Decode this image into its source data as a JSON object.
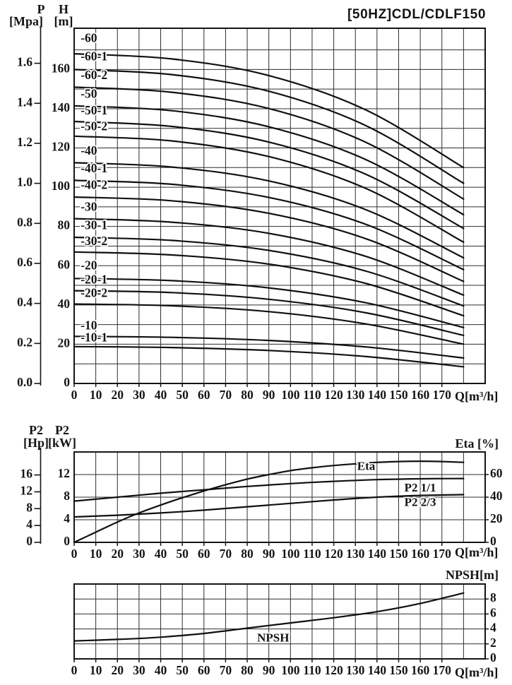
{
  "title": "[50HZ]CDL/CDLF150",
  "colors": {
    "background": "#ffffff",
    "ink": "#151515",
    "grid": "#2e2e2e",
    "curve": "#101010"
  },
  "labels": {
    "p_line1": "P",
    "p_line2": "[Mpa]",
    "h_line1": "H",
    "h_line2": "[m]",
    "p2hp_line1": "P2",
    "p2hp_line2": "[Hp]",
    "p2kw_line1": "P2",
    "p2kw_line2": "[kW]",
    "eta_axis": "Eta [%]",
    "npsh_axis": "NPSH[m]",
    "q_axis": "Q[m³/h]"
  },
  "chart_data": [
    {
      "id": "head",
      "type": "line",
      "title": "[50HZ]CDL/CDLF150",
      "xlabel": "Q[m³/h]",
      "ylabel": "H[m]",
      "y2label": "P[Mpa]",
      "xlim": [
        0,
        190
      ],
      "ylim": [
        0,
        181
      ],
      "grid": true,
      "x_ticks": [
        0,
        10,
        20,
        30,
        40,
        50,
        60,
        70,
        80,
        90,
        100,
        110,
        120,
        130,
        140,
        150,
        160,
        170
      ],
      "h_ticks": [
        0,
        20,
        40,
        60,
        80,
        100,
        120,
        140,
        160
      ],
      "p_ticks": [
        "0.0",
        "0.2",
        "0.4",
        "0.6",
        "0.8",
        "1.0",
        "1.2",
        "1.4",
        "1.6"
      ],
      "series": [
        {
          "name": "-60",
          "label_pos": [
            3,
            175.5
          ],
          "points": [
            [
              0,
              168
            ],
            [
              45,
              165.4
            ],
            [
              90,
              156.9
            ],
            [
              135,
              139.3
            ],
            [
              180,
              110
            ]
          ]
        },
        {
          "name": "-60-1",
          "label_pos": [
            3,
            166
          ],
          "points": [
            [
              0,
              160
            ],
            [
              45,
              157.4
            ],
            [
              90,
              148.9
            ],
            [
              135,
              131.3
            ],
            [
              180,
              102
            ]
          ]
        },
        {
          "name": "-60-2",
          "label_pos": [
            3,
            156.5
          ],
          "points": [
            [
              0,
              151
            ],
            [
              45,
              148.4
            ],
            [
              90,
              140.1
            ],
            [
              135,
              122.8
            ],
            [
              180,
              94
            ]
          ]
        },
        {
          "name": "-50",
          "label_pos": [
            3,
            147
          ],
          "points": [
            [
              0,
              141.5
            ],
            [
              45,
              139
            ],
            [
              90,
              130.8
            ],
            [
              135,
              114
            ],
            [
              180,
              86
            ]
          ]
        },
        {
          "name": "-50-1",
          "label_pos": [
            3,
            138.5
          ],
          "points": [
            [
              0,
              133.5
            ],
            [
              45,
              131
            ],
            [
              90,
              123
            ],
            [
              135,
              106.5
            ],
            [
              180,
              79
            ]
          ]
        },
        {
          "name": "-50-2",
          "label_pos": [
            3,
            130.5
          ],
          "points": [
            [
              0,
              126
            ],
            [
              45,
              123.6
            ],
            [
              90,
              115.6
            ],
            [
              135,
              99.3
            ],
            [
              180,
              72
            ]
          ]
        },
        {
          "name": "-40",
          "label_pos": [
            3,
            118
          ],
          "points": [
            [
              0,
              112.5
            ],
            [
              45,
              110.3
            ],
            [
              90,
              103.2
            ],
            [
              135,
              88.5
            ],
            [
              180,
              64
            ]
          ]
        },
        {
          "name": "-40-1",
          "label_pos": [
            3,
            109
          ],
          "points": [
            [
              0,
              103.5
            ],
            [
              45,
              101.5
            ],
            [
              90,
              94.8
            ],
            [
              135,
              81
            ],
            [
              180,
              58
            ]
          ]
        },
        {
          "name": "-40-2",
          "label_pos": [
            3,
            100.5
          ],
          "points": [
            [
              0,
              95
            ],
            [
              45,
              93.1
            ],
            [
              90,
              86.7
            ],
            [
              135,
              73.7
            ],
            [
              180,
              52
            ]
          ]
        },
        {
          "name": "-30",
          "label_pos": [
            3,
            89.5
          ],
          "points": [
            [
              0,
              84
            ],
            [
              45,
              82.2
            ],
            [
              90,
              76.5
            ],
            [
              135,
              64.7
            ],
            [
              180,
              45
            ]
          ]
        },
        {
          "name": "-30-1",
          "label_pos": [
            3,
            80
          ],
          "points": [
            [
              0,
              74.5
            ],
            [
              45,
              72.9
            ],
            [
              90,
              67.8
            ],
            [
              135,
              57.2
            ],
            [
              180,
              39.5
            ]
          ]
        },
        {
          "name": "-30-2",
          "label_pos": [
            3,
            72
          ],
          "points": [
            [
              0,
              67
            ],
            [
              45,
              65.5
            ],
            [
              90,
              60.8
            ],
            [
              135,
              50.9
            ],
            [
              180,
              34.5
            ]
          ]
        },
        {
          "name": "-20",
          "label_pos": [
            3,
            59.5
          ],
          "points": [
            [
              0,
              53.5
            ],
            [
              45,
              52.4
            ],
            [
              90,
              48.7
            ],
            [
              135,
              41.1
            ],
            [
              180,
              28.5
            ]
          ]
        },
        {
          "name": "-20-1",
          "label_pos": [
            3,
            52.3
          ],
          "points": [
            [
              0,
              47.3
            ],
            [
              45,
              46.3
            ],
            [
              90,
              42.9
            ],
            [
              135,
              36
            ],
            [
              180,
              24.5
            ]
          ]
        },
        {
          "name": "-20-2",
          "label_pos": [
            3,
            45.5
          ],
          "points": [
            [
              0,
              40.5
            ],
            [
              45,
              39.6
            ],
            [
              90,
              36.6
            ],
            [
              135,
              30.3
            ],
            [
              180,
              20
            ]
          ]
        },
        {
          "name": "-10",
          "label_pos": [
            3,
            29
          ],
          "points": [
            [
              0,
              24
            ],
            [
              45,
              23.5
            ],
            [
              90,
              21.9
            ],
            [
              135,
              18.6
            ],
            [
              180,
              13
            ]
          ]
        },
        {
          "name": "-10-1",
          "label_pos": [
            3,
            22.8
          ],
          "points": [
            [
              0,
              18.8
            ],
            [
              45,
              18.3
            ],
            [
              90,
              16.8
            ],
            [
              135,
              13.7
            ],
            [
              180,
              8.5
            ]
          ]
        }
      ]
    },
    {
      "id": "power_eff",
      "type": "line",
      "xlabel": "Q[m³/h]",
      "ylabel": "P2[kW]",
      "y2label": "P2[Hp]",
      "y3label": "Eta[%]",
      "xlim": [
        0,
        190
      ],
      "kw_lim": [
        0,
        16
      ],
      "eta_lim": [
        0,
        80
      ],
      "grid": true,
      "x_ticks": [
        0,
        10,
        20,
        30,
        40,
        50,
        60,
        70,
        80,
        90,
        100,
        110,
        120,
        130,
        140,
        150,
        160,
        170
      ],
      "kw_ticks": [
        0,
        4,
        8,
        12
      ],
      "hp_ticks": [
        0,
        4,
        8,
        12,
        16
      ],
      "eta_ticks": [
        0,
        20,
        40,
        60
      ],
      "kw_grid": [
        4,
        8,
        12
      ],
      "series": [
        {
          "name": "Eta",
          "axis": "eta",
          "label_pos": [
            135,
            66.5
          ],
          "points": [
            [
              0,
              0
            ],
            [
              10,
              9
            ],
            [
              20,
              18
            ],
            [
              30,
              26
            ],
            [
              40,
              33
            ],
            [
              50,
              39.5
            ],
            [
              60,
              45.5
            ],
            [
              70,
              51
            ],
            [
              80,
              56
            ],
            [
              90,
              60
            ],
            [
              100,
              63.5
            ],
            [
              110,
              66
            ],
            [
              120,
              68
            ],
            [
              130,
              69.5
            ],
            [
              140,
              70.8
            ],
            [
              150,
              71.5
            ],
            [
              160,
              71.8
            ],
            [
              170,
              71.5
            ],
            [
              180,
              70.8
            ]
          ]
        },
        {
          "name": "P2 1/1",
          "axis": "kw",
          "label_pos": [
            160,
            9.5
          ],
          "points": [
            [
              0,
              7.3
            ],
            [
              20,
              8
            ],
            [
              40,
              8.7
            ],
            [
              60,
              9.3
            ],
            [
              80,
              9.9
            ],
            [
              100,
              10.4
            ],
            [
              120,
              10.8
            ],
            [
              140,
              11.1
            ],
            [
              160,
              11.25
            ],
            [
              180,
              11.3
            ]
          ]
        },
        {
          "name": "P2 2/3",
          "axis": "kw",
          "label_pos": [
            160,
            6.9
          ],
          "points": [
            [
              0,
              4.5
            ],
            [
              20,
              4.8
            ],
            [
              40,
              5.2
            ],
            [
              60,
              5.7
            ],
            [
              80,
              6.3
            ],
            [
              100,
              6.9
            ],
            [
              120,
              7.5
            ],
            [
              140,
              8
            ],
            [
              160,
              8.3
            ],
            [
              180,
              8.45
            ]
          ]
        }
      ]
    },
    {
      "id": "npsh",
      "type": "line",
      "xlabel": "Q[m³/h]",
      "ylabel": "NPSH[m]",
      "xlim": [
        0,
        190
      ],
      "ylim": [
        0,
        10
      ],
      "grid": true,
      "x_ticks": [
        0,
        10,
        20,
        30,
        40,
        50,
        60,
        70,
        80,
        90,
        100,
        110,
        120,
        130,
        140,
        150,
        160,
        170
      ],
      "npsh_ticks": [
        0,
        2,
        4,
        6,
        8
      ],
      "y_grid": [
        2,
        4,
        6,
        8
      ],
      "series": [
        {
          "name": "NPSH",
          "label_pos": [
            92,
            2.7
          ],
          "points": [
            [
              0,
              2.4
            ],
            [
              20,
              2.6
            ],
            [
              40,
              2.9
            ],
            [
              60,
              3.4
            ],
            [
              80,
              4.1
            ],
            [
              100,
              4.8
            ],
            [
              120,
              5.5
            ],
            [
              140,
              6.3
            ],
            [
              160,
              7.4
            ],
            [
              180,
              8.8
            ]
          ]
        }
      ]
    }
  ]
}
